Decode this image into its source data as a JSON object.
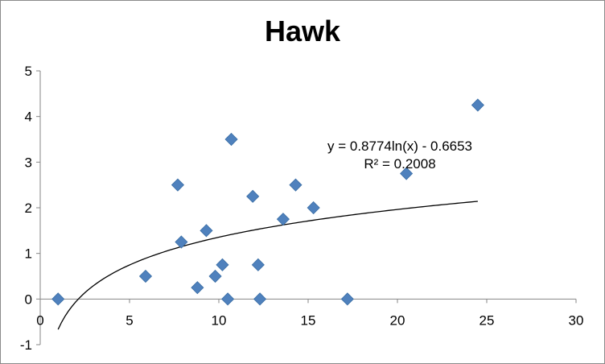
{
  "chart_data": {
    "type": "scatter",
    "title": "Hawk",
    "xlabel": "",
    "ylabel": "",
    "xlim": [
      0,
      30
    ],
    "ylim": [
      -1,
      5
    ],
    "x_ticks": [
      "0",
      "5",
      "10",
      "15",
      "20",
      "25",
      "30"
    ],
    "y_ticks": [
      "-1",
      "0",
      "1",
      "2",
      "3",
      "4",
      "5"
    ],
    "grid": false,
    "legend": "none",
    "marker_color": "#4F81BD",
    "series": [
      {
        "points": [
          {
            "x": 1.0,
            "y": 0.0
          },
          {
            "x": 5.9,
            "y": 0.5
          },
          {
            "x": 7.7,
            "y": 2.5
          },
          {
            "x": 7.9,
            "y": 1.25
          },
          {
            "x": 8.8,
            "y": 0.25
          },
          {
            "x": 9.3,
            "y": 1.5
          },
          {
            "x": 9.8,
            "y": 0.5
          },
          {
            "x": 10.2,
            "y": 0.75
          },
          {
            "x": 10.5,
            "y": 0.0
          },
          {
            "x": 10.7,
            "y": 3.5
          },
          {
            "x": 11.9,
            "y": 2.25
          },
          {
            "x": 12.2,
            "y": 0.75
          },
          {
            "x": 12.3,
            "y": 0.0
          },
          {
            "x": 13.6,
            "y": 1.75
          },
          {
            "x": 14.3,
            "y": 2.5
          },
          {
            "x": 15.3,
            "y": 2.0
          },
          {
            "x": 17.2,
            "y": 0.0
          },
          {
            "x": 20.5,
            "y": 2.75
          },
          {
            "x": 24.5,
            "y": 4.25
          }
        ]
      }
    ],
    "trendline": {
      "type": "logarithmic",
      "a": 0.8774,
      "b": -0.6653,
      "x_range": [
        1.0,
        24.5
      ],
      "color": "#000000",
      "equation": "y = 0.8774ln(x) - 0.6653",
      "r_squared": "R² = 0.2008"
    }
  }
}
